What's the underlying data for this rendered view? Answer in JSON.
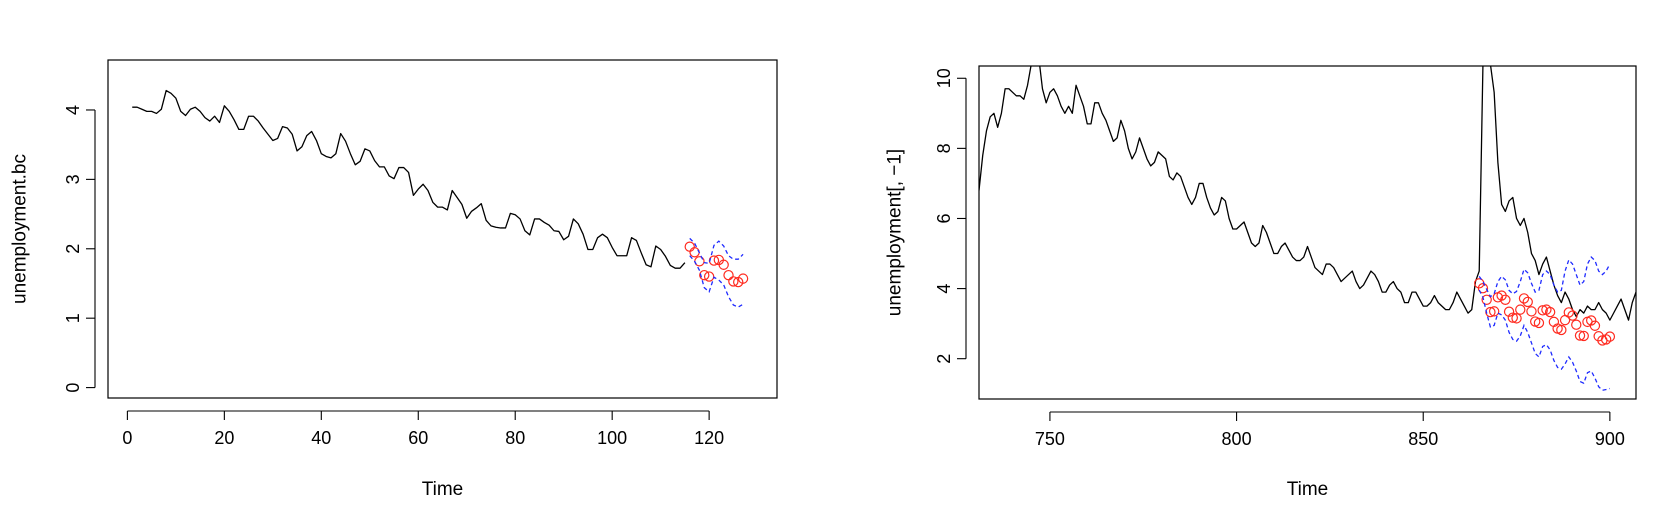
{
  "chart_data": [
    {
      "type": "line",
      "title": "",
      "xlabel": "Time",
      "ylabel": "unemployment.bc",
      "xlim": [
        -4,
        134
      ],
      "ylim": [
        -0.15,
        4.72
      ],
      "x_ticks": [
        0,
        20,
        40,
        60,
        80,
        100,
        120
      ],
      "y_ticks": [
        0,
        1,
        2,
        3,
        4
      ],
      "x_tick_labels": [
        "0",
        "20",
        "40",
        "60",
        "80",
        "100",
        "120"
      ],
      "y_tick_labels": [
        "0",
        "1",
        "2",
        "3",
        "4"
      ],
      "grid": false,
      "series": [
        {
          "role": "observed",
          "style": "solid-line",
          "color": "#000000",
          "x": [
            1,
            2,
            3,
            4,
            5,
            6,
            7,
            8,
            9,
            10,
            11,
            12,
            13,
            14,
            15,
            16,
            17,
            18,
            19,
            20,
            21,
            22,
            23,
            24,
            25,
            26,
            27,
            28,
            29,
            30,
            31,
            32,
            33,
            34,
            35,
            36,
            37,
            38,
            39,
            40,
            41,
            42,
            43,
            44,
            45,
            46,
            47,
            48,
            49,
            50,
            51,
            52,
            53,
            54,
            55,
            56,
            57,
            58,
            59,
            60,
            61,
            62,
            63,
            64,
            65,
            66,
            67,
            68,
            69,
            70,
            71,
            72,
            73,
            74,
            75,
            76,
            77,
            78,
            79,
            80,
            81,
            82,
            83,
            84,
            85,
            86,
            87,
            88,
            89,
            90,
            91,
            92,
            93,
            94,
            95,
            96,
            97,
            98,
            99,
            100,
            101,
            102,
            103,
            104,
            105,
            106,
            107,
            108,
            109,
            110,
            111,
            112,
            113,
            114,
            115
          ],
          "values": [
            4.04,
            4.04,
            4.01,
            3.98,
            3.98,
            3.95,
            4.01,
            4.28,
            4.24,
            4.17,
            3.98,
            3.92,
            4.01,
            4.04,
            3.98,
            3.89,
            3.84,
            3.91,
            3.82,
            4.06,
            3.98,
            3.86,
            3.72,
            3.72,
            3.91,
            3.91,
            3.84,
            3.74,
            3.65,
            3.56,
            3.59,
            3.76,
            3.74,
            3.65,
            3.41,
            3.47,
            3.63,
            3.69,
            3.56,
            3.37,
            3.33,
            3.31,
            3.37,
            3.66,
            3.55,
            3.37,
            3.21,
            3.26,
            3.44,
            3.41,
            3.27,
            3.18,
            3.18,
            3.05,
            3.01,
            3.17,
            3.17,
            3.1,
            2.77,
            2.86,
            2.93,
            2.84,
            2.67,
            2.6,
            2.6,
            2.56,
            2.84,
            2.74,
            2.64,
            2.44,
            2.54,
            2.59,
            2.65,
            2.41,
            2.33,
            2.31,
            2.3,
            2.3,
            2.51,
            2.49,
            2.43,
            2.26,
            2.2,
            2.43,
            2.43,
            2.38,
            2.34,
            2.26,
            2.25,
            2.13,
            2.18,
            2.43,
            2.36,
            2.21,
            1.99,
            1.99,
            2.16,
            2.21,
            2.16,
            2.02,
            1.9,
            1.9,
            1.9,
            2.16,
            2.12,
            1.94,
            1.77,
            1.74,
            2.04,
            1.99,
            1.89,
            1.76,
            1.72,
            1.72,
            1.8
          ]
        },
        {
          "role": "forecast",
          "style": "open-circles",
          "color": "#ff2a1f",
          "x": [
            116,
            117,
            118,
            119,
            120,
            121,
            122,
            123,
            124,
            125,
            126,
            127
          ],
          "values": [
            2.03,
            1.95,
            1.82,
            1.62,
            1.6,
            1.83,
            1.84,
            1.77,
            1.62,
            1.53,
            1.52,
            1.57
          ]
        },
        {
          "role": "upper-bound",
          "style": "dashed-line",
          "color": "#1f2bff",
          "x": [
            116,
            117,
            118,
            119,
            120,
            121,
            122,
            123,
            124,
            125,
            126,
            127
          ],
          "values": [
            2.15,
            2.08,
            1.94,
            1.8,
            1.79,
            2.05,
            2.11,
            2.04,
            1.9,
            1.85,
            1.85,
            1.92
          ]
        },
        {
          "role": "lower-bound",
          "style": "dashed-line",
          "color": "#1f2bff",
          "x": [
            116,
            117,
            118,
            119,
            120,
            121,
            122,
            123,
            124,
            125,
            126,
            127
          ],
          "values": [
            1.9,
            1.82,
            1.69,
            1.44,
            1.38,
            1.59,
            1.55,
            1.48,
            1.31,
            1.19,
            1.16,
            1.2
          ]
        }
      ]
    },
    {
      "type": "line",
      "title": "",
      "xlabel": "Time",
      "ylabel": "unemployment[, −1]",
      "xlim": [
        731,
        907
      ],
      "ylim": [
        0.85,
        10.35
      ],
      "x_ticks": [
        750,
        800,
        850,
        900
      ],
      "y_ticks": [
        2,
        4,
        6,
        8,
        10
      ],
      "x_tick_labels": [
        "750",
        "800",
        "850",
        "900"
      ],
      "y_tick_labels": [
        "2",
        "4",
        "6",
        "8",
        "10"
      ],
      "grid": false,
      "series": [
        {
          "role": "observed",
          "style": "solid-line",
          "color": "#000000",
          "x": [
            731,
            732,
            733,
            734,
            735,
            736,
            737,
            738,
            739,
            740,
            741,
            742,
            743,
            744,
            745,
            746,
            747,
            748,
            749,
            750,
            751,
            752,
            753,
            754,
            755,
            756,
            757,
            758,
            759,
            760,
            761,
            762,
            763,
            764,
            765,
            766,
            767,
            768,
            769,
            770,
            771,
            772,
            773,
            774,
            775,
            776,
            777,
            778,
            779,
            780,
            781,
            782,
            783,
            784,
            785,
            786,
            787,
            788,
            789,
            790,
            791,
            792,
            793,
            794,
            795,
            796,
            797,
            798,
            799,
            800,
            801,
            802,
            803,
            804,
            805,
            806,
            807,
            808,
            809,
            810,
            811,
            812,
            813,
            814,
            815,
            816,
            817,
            818,
            819,
            820,
            821,
            822,
            823,
            824,
            825,
            826,
            827,
            828,
            829,
            830,
            831,
            832,
            833,
            834,
            835,
            836,
            837,
            838,
            839,
            840,
            841,
            842,
            843,
            844,
            845,
            846,
            847,
            848,
            849,
            850,
            851,
            852,
            853,
            854,
            855,
            856,
            857,
            858,
            859,
            860,
            861,
            862,
            863,
            864,
            865,
            866,
            867,
            868,
            869,
            870,
            871,
            872,
            873,
            874,
            875,
            876,
            877,
            878,
            879,
            880,
            881,
            882,
            883,
            884,
            885,
            886,
            887,
            888,
            889,
            890,
            891,
            892,
            893,
            894,
            895,
            896,
            897,
            898,
            899,
            900,
            901,
            902,
            903,
            904,
            905,
            906,
            907
          ],
          "values": [
            6.8,
            7.8,
            8.5,
            8.9,
            9.0,
            8.6,
            9.0,
            9.7,
            9.7,
            9.6,
            9.5,
            9.5,
            9.4,
            9.8,
            10.4,
            11.0,
            10.6,
            9.7,
            9.3,
            9.6,
            9.7,
            9.5,
            9.2,
            9.0,
            9.2,
            9.0,
            9.8,
            9.5,
            9.2,
            8.7,
            8.7,
            9.3,
            9.3,
            9.0,
            8.8,
            8.5,
            8.2,
            8.3,
            8.8,
            8.5,
            8.0,
            7.7,
            7.9,
            8.3,
            8.0,
            7.7,
            7.5,
            7.6,
            7.9,
            7.8,
            7.7,
            7.2,
            7.1,
            7.3,
            7.2,
            6.9,
            6.6,
            6.4,
            6.6,
            7.0,
            7.0,
            6.6,
            6.3,
            6.1,
            6.2,
            6.6,
            6.5,
            6.0,
            5.7,
            5.7,
            5.8,
            5.9,
            5.6,
            5.3,
            5.2,
            5.3,
            5.8,
            5.6,
            5.3,
            5.0,
            5.0,
            5.2,
            5.3,
            5.1,
            4.9,
            4.8,
            4.8,
            4.9,
            5.2,
            4.9,
            4.6,
            4.5,
            4.4,
            4.7,
            4.7,
            4.6,
            4.4,
            4.2,
            4.3,
            4.4,
            4.5,
            4.2,
            4.0,
            4.1,
            4.3,
            4.5,
            4.4,
            4.2,
            3.9,
            3.9,
            4.1,
            4.2,
            4.0,
            3.9,
            3.6,
            3.6,
            3.9,
            3.9,
            3.7,
            3.5,
            3.5,
            3.6,
            3.8,
            3.6,
            3.5,
            3.4,
            3.4,
            3.6,
            3.9,
            3.7,
            3.5,
            3.3,
            3.4,
            4.2,
            4.5,
            10.4,
            13.0,
            10.4,
            9.6,
            7.6,
            6.4,
            6.2,
            6.5,
            6.6,
            6.0,
            5.8,
            6.0,
            5.6,
            5.0,
            4.8,
            4.4,
            4.7,
            4.9,
            4.5,
            4.1,
            3.8,
            3.6,
            3.9,
            3.7,
            3.4,
            3.2,
            3.4,
            3.3,
            3.5,
            3.4,
            3.4,
            3.6,
            3.4,
            3.3,
            3.1,
            3.3,
            3.5,
            3.7,
            3.4,
            3.1,
            3.6,
            3.9
          ]
        },
        {
          "role": "forecast",
          "style": "open-circles",
          "color": "#ff2a1f",
          "x": [
            865,
            866,
            867,
            868,
            869,
            870,
            871,
            872,
            873,
            874,
            875,
            876,
            877,
            878,
            879,
            880,
            881,
            882,
            883,
            884,
            885,
            886,
            887,
            888,
            889,
            890,
            891,
            892,
            893,
            894,
            895,
            896,
            897,
            898,
            899,
            900
          ],
          "values": [
            4.15,
            4.01,
            3.68,
            3.33,
            3.35,
            3.75,
            3.8,
            3.68,
            3.34,
            3.17,
            3.15,
            3.4,
            3.72,
            3.62,
            3.35,
            3.06,
            3.02,
            3.38,
            3.4,
            3.33,
            3.05,
            2.86,
            2.82,
            3.1,
            3.32,
            3.23,
            2.97,
            2.66,
            2.65,
            3.05,
            3.09,
            2.94,
            2.64,
            2.52,
            2.55,
            2.63
          ]
        },
        {
          "role": "upper-bound",
          "style": "dashed-line",
          "color": "#1f2bff",
          "x": [
            865,
            866,
            867,
            868,
            869,
            870,
            871,
            872,
            873,
            874,
            875,
            876,
            877,
            878,
            879,
            880,
            881,
            882,
            883,
            884,
            885,
            886,
            887,
            888,
            889,
            890,
            891,
            892,
            893,
            894,
            895,
            896,
            897,
            898,
            899,
            900
          ],
          "values": [
            4.35,
            4.2,
            3.98,
            3.77,
            3.85,
            4.2,
            4.35,
            4.25,
            3.95,
            3.85,
            3.92,
            4.2,
            4.55,
            4.45,
            4.15,
            3.9,
            3.95,
            4.4,
            4.5,
            4.4,
            4.1,
            3.9,
            3.95,
            4.5,
            4.82,
            4.7,
            4.4,
            4.1,
            4.2,
            4.7,
            4.9,
            4.8,
            4.5,
            4.4,
            4.5,
            4.7
          ]
        },
        {
          "role": "lower-bound",
          "style": "dashed-line",
          "color": "#1f2bff",
          "x": [
            865,
            866,
            867,
            868,
            869,
            870,
            871,
            872,
            873,
            874,
            875,
            876,
            877,
            878,
            879,
            880,
            881,
            882,
            883,
            884,
            885,
            886,
            887,
            888,
            889,
            890,
            891,
            892,
            893,
            894,
            895,
            896,
            897,
            898,
            899,
            900
          ],
          "values": [
            3.96,
            3.75,
            3.3,
            2.9,
            2.95,
            3.3,
            3.25,
            3.1,
            2.75,
            2.55,
            2.5,
            2.65,
            2.95,
            2.75,
            2.45,
            2.15,
            2.05,
            2.35,
            2.4,
            2.25,
            1.95,
            1.75,
            1.7,
            1.85,
            2.05,
            1.9,
            1.65,
            1.35,
            1.3,
            1.6,
            1.65,
            1.45,
            1.2,
            1.1,
            1.12,
            1.15
          ]
        }
      ]
    }
  ]
}
